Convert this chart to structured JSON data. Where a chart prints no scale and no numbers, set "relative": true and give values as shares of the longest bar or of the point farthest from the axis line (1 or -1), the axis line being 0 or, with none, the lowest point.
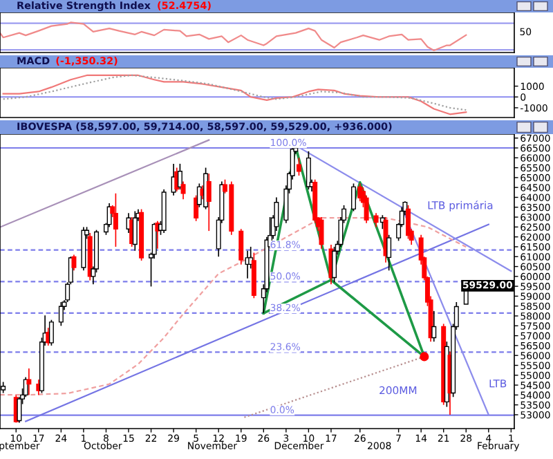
{
  "chart_data": [
    {
      "type": "line",
      "title": "Relative Strength Index",
      "subtitle": "(52.4754)",
      "annotations": [
        "50"
      ],
      "relative": true,
      "tick_labels": false,
      "xlim": [
        "2007-09-05",
        "2008-02-12"
      ],
      "ref_lines": [
        {
          "axis": "y",
          "value": 0.97,
          "color": "#9c9cf0"
        },
        {
          "axis": "y",
          "value": 0.09,
          "color": "#9c9cf0"
        }
      ],
      "x": [
        "2007-09-05",
        "2007-09-06",
        "2007-09-11",
        "2007-09-13",
        "2007-09-17",
        "2007-09-19",
        "2007-09-21",
        "2007-09-26",
        "2007-09-27",
        "2007-10-01",
        "2007-10-04",
        "2007-10-09",
        "2007-10-12",
        "2007-10-17",
        "2007-10-19",
        "2007-10-23",
        "2007-10-26",
        "2007-10-31",
        "2007-11-02",
        "2007-11-06",
        "2007-11-09",
        "2007-11-13",
        "2007-11-15",
        "2007-11-19",
        "2007-11-21",
        "2007-11-26",
        "2007-11-27",
        "2007-11-30",
        "2007-12-06",
        "2007-12-10",
        "2007-12-12",
        "2007-12-14",
        "2007-12-18",
        "2007-12-20",
        "2007-12-25",
        "2007-12-27",
        "2008-01-01",
        "2008-01-04",
        "2008-01-08",
        "2008-01-10",
        "2008-01-14",
        "2008-01-16",
        "2008-01-18",
        "2008-01-22",
        "2008-01-23",
        "2008-01-28"
      ],
      "series": [
        {
          "color": "#f08a8a",
          "line_style": "solid",
          "values": [
            0.65,
            0.5,
            0.65,
            0.57,
            0.72,
            0.8,
            0.88,
            0.95,
            1,
            0.95,
            0.69,
            0.8,
            0.72,
            0.6,
            0.69,
            0.57,
            0.76,
            0.72,
            0.54,
            0.6,
            0.45,
            0.54,
            0.34,
            0.57,
            0.42,
            0.24,
            0.3,
            0.54,
            0.65,
            0.8,
            0.72,
            0.42,
            0.16,
            0.34,
            0.5,
            0.57,
            0.42,
            0.54,
            0.6,
            0.42,
            0.45,
            0.19,
            0.07,
            0.24,
            0.24,
            0.58
          ]
        }
      ]
    },
    {
      "type": "line",
      "title": "MACD",
      "subtitle": "(-1,350.32)",
      "tick_labels": "y",
      "xlim": [
        "2007-09-05",
        "2008-02-12"
      ],
      "ylim": [
        -1900,
        2700
      ],
      "yticks": [
        1000,
        0,
        -1000
      ],
      "ref_lines": [
        {
          "axis": "y",
          "value": 0,
          "color": "#8c8cf0"
        }
      ],
      "series": [
        {
          "color": "#f07878",
          "line_style": "solid",
          "x": [
            "2007-09-06",
            "2007-09-11",
            "2007-09-17",
            "2007-09-21",
            "2007-09-27",
            "2007-10-02",
            "2007-10-08",
            "2007-10-12",
            "2007-10-18",
            "2007-10-23",
            "2007-10-26",
            "2007-11-01",
            "2007-11-07",
            "2007-11-13",
            "2007-11-19",
            "2007-11-22",
            "2007-11-27",
            "2007-11-30",
            "2007-12-05",
            "2007-12-10",
            "2007-12-13",
            "2007-12-18",
            "2007-12-21",
            "2007-12-26",
            "2008-01-01",
            "2008-01-07",
            "2008-01-10",
            "2008-01-14",
            "2008-01-18",
            "2008-01-23",
            "2008-01-28"
          ],
          "values": [
            300,
            300,
            500,
            900,
            1600,
            2000,
            2000,
            2000,
            2000,
            1600,
            1400,
            1400,
            1200,
            900,
            600,
            0,
            -300,
            -100,
            0,
            500,
            700,
            600,
            300,
            100,
            0,
            0,
            0,
            -400,
            -1100,
            -1600,
            -1400
          ]
        },
        {
          "color": "#a0a0a0",
          "line_style": "dotted",
          "x": [
            "2007-09-06",
            "2007-09-13",
            "2007-09-21",
            "2007-10-01",
            "2007-10-10",
            "2007-10-16",
            "2007-10-23",
            "2007-11-01",
            "2007-11-09",
            "2007-11-19",
            "2007-11-26",
            "2007-11-30",
            "2007-12-06",
            "2007-12-14",
            "2007-12-20",
            "2007-12-27",
            "2008-01-04",
            "2008-01-11",
            "2008-01-18",
            "2008-01-23",
            "2008-01-28"
          ],
          "values": [
            -200,
            0,
            500,
            1200,
            1800,
            2000,
            1800,
            1500,
            1200,
            500,
            0,
            -200,
            0,
            500,
            400,
            0,
            0,
            -100,
            -600,
            -1000,
            -1200
          ]
        }
      ]
    },
    {
      "type": "candlestick",
      "title": "IBOVESPA (58,597.00, 59,714.00, 58,597.00, 59,529.00, +936.000)",
      "xlim": [
        "2007-09-05",
        "2008-02-12"
      ],
      "ylim": [
        52300,
        67200
      ],
      "xticks": [
        {
          "value": "2007-09-10",
          "label": "10"
        },
        {
          "value": "2007-09-17",
          "label": "17"
        },
        {
          "value": "2007-09-24",
          "label": "24"
        },
        {
          "value": "2007-10-01",
          "label": "1"
        },
        {
          "value": "2007-10-08",
          "label": "8"
        },
        {
          "value": "2007-10-15",
          "label": "15"
        },
        {
          "value": "2007-10-22",
          "label": "22"
        },
        {
          "value": "2007-10-29",
          "label": "29"
        },
        {
          "value": "2007-11-05",
          "label": "5"
        },
        {
          "value": "2007-11-12",
          "label": "12"
        },
        {
          "value": "2007-11-19",
          "label": "19"
        },
        {
          "value": "2007-11-26",
          "label": "26"
        },
        {
          "value": "2007-12-03",
          "label": "3"
        },
        {
          "value": "2007-12-10",
          "label": "10"
        },
        {
          "value": "2007-12-17",
          "label": "17"
        },
        {
          "value": "2007-12-26",
          "label": "26"
        },
        {
          "value": "2008-01-07",
          "label": "7"
        },
        {
          "value": "2008-01-14",
          "label": "14"
        },
        {
          "value": "2008-01-21",
          "label": "21"
        },
        {
          "value": "2008-01-28",
          "label": "28"
        },
        {
          "value": "2008-02-04",
          "label": "4"
        },
        {
          "value": "2008-02-11",
          "label": "1"
        }
      ],
      "x2lim": [
        "2007-09-05",
        "2008-02-12"
      ],
      "x2ticks": [
        {
          "value": "2007-09-11",
          "label": "ptember"
        },
        {
          "value": "2007-10-07",
          "label": "October"
        },
        {
          "value": "2007-11-10",
          "label": "November"
        },
        {
          "value": "2007-12-07",
          "label": "December"
        },
        {
          "value": "2008-01-01",
          "label": "2008"
        },
        {
          "value": "2008-02-07",
          "label": "February"
        }
      ],
      "yticks": [
        53000,
        53500,
        54000,
        54500,
        55000,
        55500,
        56000,
        56500,
        57000,
        57500,
        58000,
        58500,
        59000,
        59500,
        60000,
        60500,
        61000,
        61500,
        62000,
        62500,
        63000,
        63500,
        64000,
        64500,
        65000,
        65500,
        66000,
        66500,
        67000
      ],
      "x": [
        "2007-09-06",
        "2007-09-10",
        "2007-09-11",
        "2007-09-12",
        "2007-09-13",
        "2007-09-14",
        "2007-09-17",
        "2007-09-18",
        "2007-09-19",
        "2007-09-20",
        "2007-09-21",
        "2007-09-24",
        "2007-09-25",
        "2007-09-26",
        "2007-09-27",
        "2007-09-28",
        "2007-10-01",
        "2007-10-02",
        "2007-10-03",
        "2007-10-04",
        "2007-10-05",
        "2007-10-08",
        "2007-10-09",
        "2007-10-10",
        "2007-10-11",
        "2007-10-15",
        "2007-10-16",
        "2007-10-17",
        "2007-10-18",
        "2007-10-19",
        "2007-10-22",
        "2007-10-23",
        "2007-10-24",
        "2007-10-25",
        "2007-10-26",
        "2007-10-29",
        "2007-10-30",
        "2007-10-31",
        "2007-11-01",
        "2007-11-05",
        "2007-11-06",
        "2007-11-07",
        "2007-11-08",
        "2007-11-09",
        "2007-11-12",
        "2007-11-13",
        "2007-11-14",
        "2007-11-16",
        "2007-11-19",
        "2007-11-21",
        "2007-11-22",
        "2007-11-23",
        "2007-11-26",
        "2007-11-27",
        "2007-11-28",
        "2007-11-29",
        "2007-11-30",
        "2007-12-03",
        "2007-12-04",
        "2007-12-05",
        "2007-12-06",
        "2007-12-07",
        "2007-12-10",
        "2007-12-11",
        "2007-12-12",
        "2007-12-13",
        "2007-12-14",
        "2007-12-17",
        "2007-12-18",
        "2007-12-19",
        "2007-12-20",
        "2007-12-21",
        "2007-12-24",
        "2007-12-26",
        "2007-12-27",
        "2007-12-28",
        "2007-12-31",
        "2008-01-02",
        "2008-01-03",
        "2008-01-04",
        "2008-01-07",
        "2008-01-08",
        "2008-01-09",
        "2008-01-10",
        "2008-01-11",
        "2008-01-14",
        "2008-01-15",
        "2008-01-16",
        "2008-01-17",
        "2008-01-18",
        "2008-01-21",
        "2008-01-22",
        "2008-01-23",
        "2008-01-24",
        "2008-01-25",
        "2008-01-28"
      ],
      "ohlc": [
        [
          54260,
          54660,
          54100,
          54440
        ],
        [
          53880,
          53990,
          52600,
          52650
        ],
        [
          52700,
          53900,
          52600,
          53800
        ],
        [
          53800,
          54330,
          53540,
          54000
        ],
        [
          54000,
          54900,
          53900,
          54780
        ],
        [
          54780,
          55340,
          54000,
          54550
        ],
        [
          54550,
          54780,
          54000,
          54220
        ],
        [
          54220,
          56900,
          54100,
          56680
        ],
        [
          56680,
          58030,
          56500,
          57130
        ],
        [
          57170,
          57400,
          56500,
          56640
        ],
        [
          56640,
          57800,
          56500,
          57690
        ],
        [
          57690,
          58700,
          57500,
          58480
        ],
        [
          58480,
          58800,
          58300,
          58700
        ],
        [
          58810,
          59700,
          58700,
          59600
        ],
        [
          59710,
          61000,
          59600,
          60940
        ],
        [
          60990,
          61100,
          60300,
          60450
        ],
        [
          60450,
          62500,
          60300,
          62330
        ],
        [
          62100,
          62500,
          61900,
          62330
        ],
        [
          62020,
          62200,
          59800,
          60000
        ],
        [
          60000,
          60500,
          59600,
          60380
        ],
        [
          60380,
          62350,
          60200,
          62250
        ],
        [
          62250,
          62700,
          62100,
          62630
        ],
        [
          62630,
          63700,
          62500,
          63520
        ],
        [
          63520,
          63600,
          63000,
          63190
        ],
        [
          63190,
          64200,
          61500,
          62400
        ],
        [
          62400,
          63200,
          62200,
          62960
        ],
        [
          62850,
          63000,
          61500,
          61660
        ],
        [
          61620,
          63300,
          61300,
          62960
        ],
        [
          62960,
          63400,
          62800,
          63190
        ],
        [
          63230,
          63400,
          60800,
          60940
        ],
        [
          60940,
          61200,
          59490,
          61120
        ],
        [
          61120,
          62700,
          60900,
          62630
        ],
        [
          62700,
          62800,
          61400,
          62300
        ],
        [
          62330,
          62800,
          62100,
          62630
        ],
        [
          62330,
          64400,
          62200,
          64260
        ],
        [
          64260,
          65700,
          64100,
          65030
        ],
        [
          65300,
          65500,
          64300,
          64420
        ],
        [
          64530,
          65700,
          64400,
          65320
        ],
        [
          64650,
          64800,
          63900,
          64200
        ],
        [
          63970,
          64100,
          62800,
          62960
        ],
        [
          63640,
          64700,
          63500,
          64530
        ],
        [
          64420,
          64600,
          63900,
          64100
        ],
        [
          63520,
          65500,
          63400,
          65200
        ],
        [
          64800,
          65200,
          62300,
          63800
        ],
        [
          61400,
          63000,
          61000,
          62850
        ],
        [
          62850,
          64800,
          62700,
          64640
        ],
        [
          64640,
          64900,
          64200,
          64300
        ],
        [
          64640,
          64800,
          62100,
          62290
        ],
        [
          62290,
          62400,
          60600,
          60830
        ],
        [
          60610,
          61300,
          59900,
          60945
        ],
        [
          60610,
          61500,
          60400,
          60945
        ],
        [
          60800,
          61200,
          58900,
          59040
        ],
        [
          58925,
          59600,
          58140,
          59375
        ],
        [
          59375,
          62000,
          59200,
          61840
        ],
        [
          61505,
          63000,
          61400,
          62070
        ],
        [
          62070,
          63100,
          61900,
          62960
        ],
        [
          62516,
          64000,
          62300,
          63747
        ],
        [
          62850,
          64600,
          62700,
          64420
        ],
        [
          64420,
          65300,
          64200,
          65200
        ],
        [
          65093,
          66500,
          64900,
          66440
        ],
        [
          66330,
          66550,
          66200,
          66500
        ],
        [
          65650,
          66000,
          65100,
          65320
        ],
        [
          64540,
          66330,
          64400,
          65990
        ],
        [
          64540,
          64900,
          64300,
          64760
        ],
        [
          64760,
          64900,
          62700,
          62850
        ],
        [
          62960,
          63000,
          62300,
          62516
        ],
        [
          62850,
          63000,
          61400,
          61620
        ],
        [
          61390,
          61600,
          59600,
          59940
        ],
        [
          59940,
          61500,
          59700,
          61280
        ],
        [
          61280,
          61800,
          61100,
          61620
        ],
        [
          61620,
          63000,
          61500,
          62850
        ],
        [
          62850,
          63600,
          62700,
          63410
        ],
        [
          63410,
          64700,
          63300,
          64530
        ],
        [
          64530,
          64700,
          63800,
          63970
        ],
        [
          64300,
          64500,
          63500,
          63747
        ],
        [
          63970,
          64100,
          62700,
          62850
        ],
        [
          63070,
          63200,
          62500,
          62740
        ],
        [
          62740,
          63100,
          62400,
          62960
        ],
        [
          62850,
          63000,
          60700,
          61055
        ],
        [
          60960,
          62100,
          60300,
          61950
        ],
        [
          61950,
          62700,
          61800,
          62626
        ],
        [
          62626,
          63500,
          62500,
          63300
        ],
        [
          63300,
          63800,
          63100,
          63750
        ],
        [
          63410,
          63600,
          61900,
          62070
        ],
        [
          62290,
          62400,
          61600,
          61840
        ],
        [
          61950,
          62100,
          60600,
          60830
        ],
        [
          60940,
          61000,
          59800,
          59934
        ],
        [
          59934,
          60000,
          58500,
          58700
        ],
        [
          58810,
          59000,
          56700,
          56900
        ],
        [
          56900,
          58250,
          56700,
          57460
        ],
        [
          57460,
          57600,
          53500,
          53650
        ],
        [
          53650,
          56700,
          53400,
          56450
        ],
        [
          56010,
          56200,
          53000,
          54100
        ],
        [
          54100,
          57600,
          53900,
          57460
        ],
        [
          57460,
          58700,
          57300,
          58474
        ],
        [
          58597,
          59714,
          58597,
          59529
        ]
      ],
      "colors": [
        "#ffffff",
        "#ff0000",
        "#ffffff",
        "#ffffff",
        "#ffffff",
        "#ff0000",
        "#ff0000",
        "#ffffff",
        "#ffffff",
        "#ff0000",
        "#ffffff",
        "#ffffff",
        "#ffffff",
        "#ffffff",
        "#ffffff",
        "#ff0000",
        "#ffffff",
        "#ffffff",
        "#ff0000",
        "#ffffff",
        "#ffffff",
        "#ffffff",
        "#ffffff",
        "#ff0000",
        "#ff0000",
        "#ffffff",
        "#ff0000",
        "#ffffff",
        "#ffffff",
        "#ff0000",
        "#ffffff",
        "#ffffff",
        "#ff0000",
        "#ffffff",
        "#ffffff",
        "#ffffff",
        "#ff0000",
        "#ffffff",
        "#ff0000",
        "#ff0000",
        "#ffffff",
        "#ff0000",
        "#ffffff",
        "#ff0000",
        "#ffffff",
        "#ffffff",
        "#ff0000",
        "#ff0000",
        "#ff0000",
        "#ffffff",
        "#ffffff",
        "#ff0000",
        "#ffffff",
        "#ffffff",
        "#ffffff",
        "#ffffff",
        "#ffffff",
        "#ffffff",
        "#ffffff",
        "#ffffff",
        "#ffffff",
        "#ff0000",
        "#ffffff",
        "#ffffff",
        "#ff0000",
        "#ff0000",
        "#ff0000",
        "#ff0000",
        "#ffffff",
        "#ffffff",
        "#ffffff",
        "#ffffff",
        "#ffffff",
        "#ff0000",
        "#ff0000",
        "#ff0000",
        "#ff0000",
        "#ffffff",
        "#ff0000",
        "#ffffff",
        "#ffffff",
        "#ffffff",
        "#ffffff",
        "#ff0000",
        "#ff0000",
        "#ff0000",
        "#ff0000",
        "#ff0000",
        "#ff0000",
        "#ffffff",
        "#ff0000",
        "#ffffff",
        "#ff0000",
        "#ffffff",
        "#ffffff",
        "#ffffff"
      ],
      "series": [
        {
          "type": "line",
          "color": "#a890b8",
          "line_style": "solid",
          "x": [
            "2007-09-05",
            "2007-11-09"
          ],
          "values": [
            62490,
            66900
          ]
        },
        {
          "type": "line",
          "color": "#7474e4",
          "line_style": "solid",
          "x": [
            "2007-09-13",
            "2008-02-04"
          ],
          "values": [
            52670,
            62630
          ]
        },
        {
          "type": "line",
          "color": "#8c8cec",
          "line_style": "solid",
          "x": [
            "2007-12-07",
            "2008-02-11"
          ],
          "values": [
            66530,
            60270
          ]
        },
        {
          "type": "line",
          "color": "#8c8cec",
          "line_style": "solid",
          "x": [
            "2008-01-08",
            "2008-02-04"
          ],
          "values": [
            63500,
            53000
          ]
        },
        {
          "type": "line",
          "color": "#f0a0a0",
          "line_style": "dashed",
          "x": [
            "2007-09-05",
            "2007-09-14",
            "2007-09-26",
            "2007-10-09",
            "2007-10-18",
            "2007-10-26",
            "2007-11-01",
            "2007-11-12",
            "2007-11-20",
            "2007-12-04",
            "2007-12-14",
            "2008-01-03",
            "2008-01-16",
            "2008-01-28"
          ],
          "values": [
            54010,
            54010,
            54080,
            54550,
            55560,
            56900,
            58100,
            60140,
            60810,
            62070,
            62960,
            62960,
            62500,
            61490
          ]
        },
        {
          "type": "line",
          "color": "#b89090",
          "line_style": "dotted",
          "x": [
            "2007-11-20",
            "2008-01-15"
          ],
          "values": [
            52870,
            55940
          ]
        },
        {
          "type": "line",
          "color": "#1e9a46",
          "line_style": "solid",
          "x": [
            "2007-11-26",
            "2007-12-06",
            "2007-12-17",
            "2007-12-26",
            "2008-01-15"
          ],
          "values": [
            58140,
            66550,
            59820,
            64760,
            55940
          ]
        },
        {
          "type": "line",
          "color": "#1e9a46",
          "line_style": "solid",
          "x": [
            "2007-11-26",
            "2007-12-17",
            "2008-01-15"
          ],
          "values": [
            58140,
            59820,
            55940
          ]
        },
        {
          "type": "scatter",
          "color": "#ff0000",
          "marker": "circle",
          "x": [
            "2008-01-15"
          ],
          "values": [
            55940
          ]
        }
      ],
      "ref_lines": [
        {
          "axis": "y",
          "value": 66500,
          "color": "#7c7cea",
          "line_style": "solid"
        },
        {
          "axis": "y",
          "value": 61335,
          "color": "#7c7cea",
          "line_style": "dashed"
        },
        {
          "axis": "y",
          "value": 59740,
          "color": "#7c7cea",
          "line_style": "dashed"
        },
        {
          "axis": "y",
          "value": 58145,
          "color": "#7c7cea",
          "line_style": "dashed"
        },
        {
          "axis": "y",
          "value": 56170,
          "color": "#7c7cea",
          "line_style": "dashed"
        },
        {
          "axis": "y",
          "value": 52980,
          "color": "#7c7cea",
          "line_style": "solid"
        }
      ],
      "annotations": [
        "59529.00",
        "LTB primária",
        "LTB",
        "200MM",
        {
          "text": "100.0%",
          "x": "2007-11-28",
          "y": 66500
        },
        {
          "text": "61.8%",
          "x": "2007-11-28",
          "y": 61335
        },
        {
          "text": "50.0%",
          "x": "2007-11-28",
          "y": 59740
        },
        {
          "text": "38.2%",
          "x": "2007-11-28",
          "y": 58145
        },
        {
          "text": "23.6%",
          "x": "2007-11-28",
          "y": 56170
        },
        {
          "text": "0.0%",
          "x": "2007-11-28",
          "y": 52980
        }
      ]
    }
  ]
}
